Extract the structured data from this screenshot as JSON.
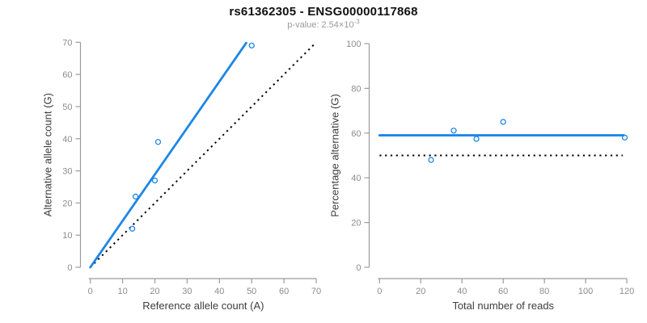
{
  "header": {
    "title": "rs61362305 - ENSG00000117868",
    "subtitle_base": "p-value: 2.54×10",
    "subtitle_exponent": "-3"
  },
  "colors": {
    "accent_blue": "#1E86E6",
    "reference_black": "#000000",
    "axis_line": "#9B9B9B",
    "tick_label": "#8C8C8C",
    "axis_title": "#3D3D3D",
    "title": "#111111",
    "subtitle": "#9A9A9A"
  },
  "chart_data": [
    {
      "id": "allele-counts",
      "type": "scatter",
      "title": "",
      "xlabel": "Reference allele count (A)",
      "ylabel": "Alternative allele count (G)",
      "xlim": [
        0,
        70
      ],
      "ylim": [
        0,
        70
      ],
      "xticks": [
        0,
        10,
        20,
        30,
        40,
        50,
        60,
        70
      ],
      "yticks": [
        0,
        10,
        20,
        30,
        40,
        50,
        60,
        70
      ],
      "grid": false,
      "legend": "none",
      "points": [
        {
          "x": 13,
          "y": 12
        },
        {
          "x": 14,
          "y": 22
        },
        {
          "x": 20,
          "y": 27
        },
        {
          "x": 21,
          "y": 39
        },
        {
          "x": 50,
          "y": 69
        }
      ],
      "fit_line": {
        "style": "solid",
        "x1": 0,
        "y1": 0,
        "x2": 48.3,
        "y2": 69.8
      },
      "reference_line": {
        "style": "dotted",
        "x1": 0,
        "y1": 0,
        "x2": 70,
        "y2": 70
      }
    },
    {
      "id": "percentage-alternative",
      "type": "scatter",
      "title": "",
      "xlabel": "Total number of reads",
      "ylabel": "Percentage alternative (G)",
      "xlim": [
        0,
        120
      ],
      "ylim": [
        0,
        100
      ],
      "xticks": [
        0,
        20,
        40,
        60,
        80,
        100,
        120
      ],
      "yticks": [
        0,
        20,
        40,
        60,
        80,
        100
      ],
      "grid": false,
      "legend": "none",
      "points": [
        {
          "x": 25,
          "y": 48
        },
        {
          "x": 36,
          "y": 61.1
        },
        {
          "x": 47,
          "y": 57.4
        },
        {
          "x": 60,
          "y": 65
        },
        {
          "x": 119,
          "y": 58
        }
      ],
      "fit_line": {
        "style": "solid",
        "x1": 0,
        "y1": 59,
        "x2": 118.5,
        "y2": 59
      },
      "reference_line": {
        "style": "dotted",
        "x1": 0,
        "y1": 50,
        "x2": 118,
        "y2": 50
      }
    }
  ]
}
